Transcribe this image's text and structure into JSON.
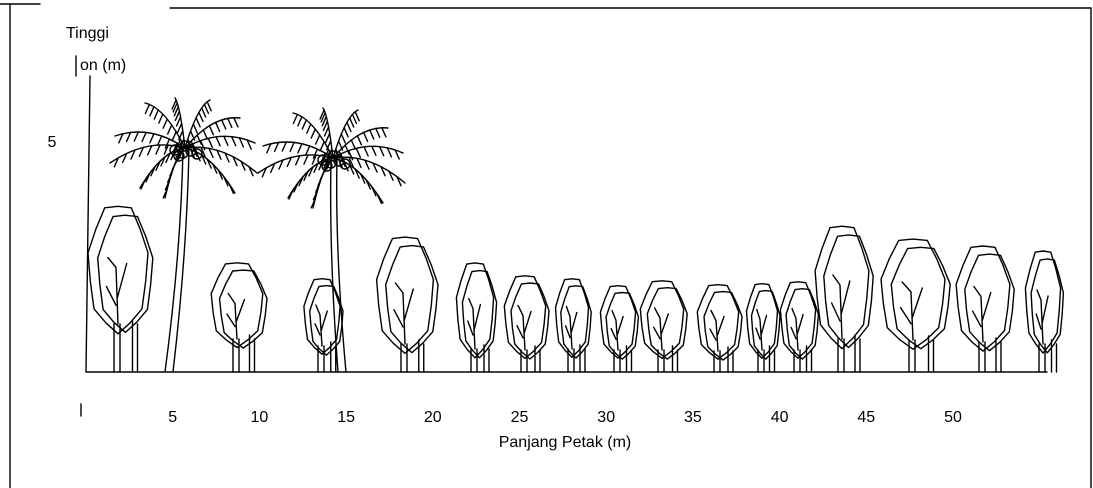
{
  "y_axis": {
    "label_lines": [
      "Tinggi",
      "on (m)"
    ],
    "ticks": [
      5
    ]
  },
  "x_axis": {
    "label": "Panjang Petak (m)",
    "ticks": [
      5,
      10,
      15,
      20,
      25,
      30,
      35,
      40,
      45,
      50
    ]
  }
}
